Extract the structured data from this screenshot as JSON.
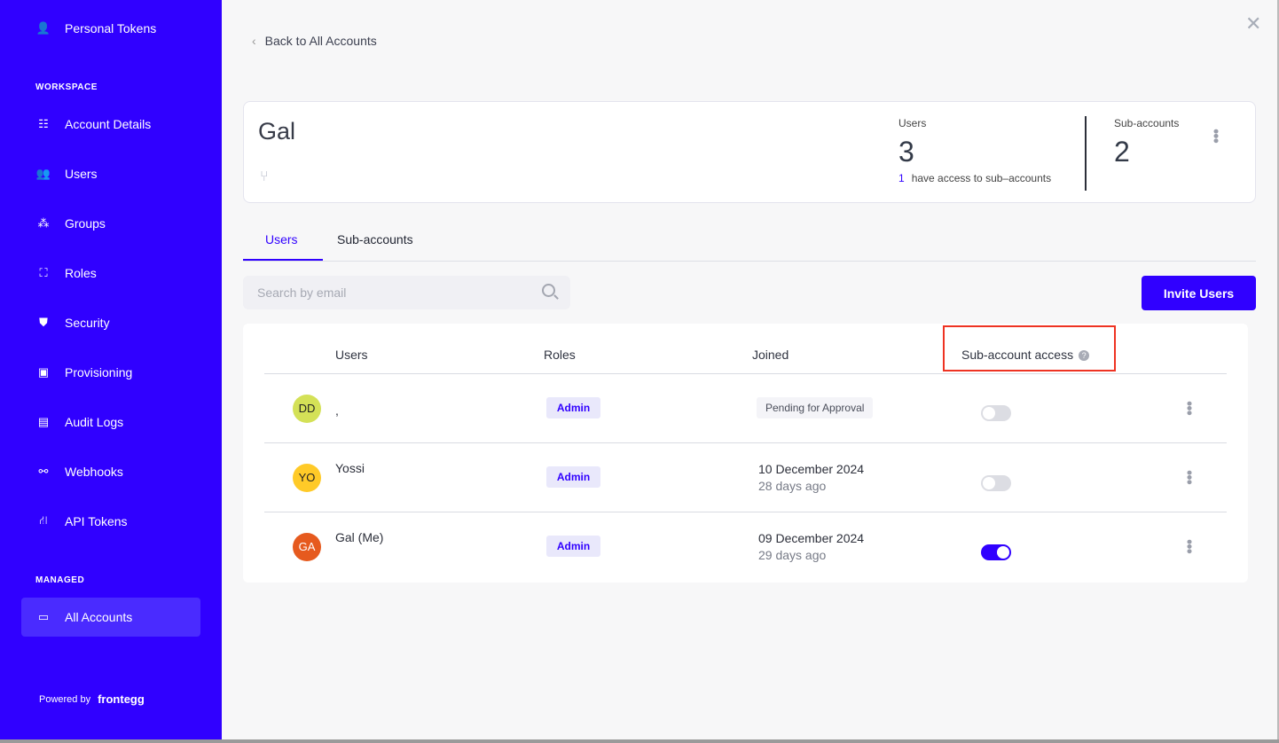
{
  "sidebar": {
    "personal_tokens": "Personal Tokens",
    "workspace_label": "WORKSPACE",
    "items": [
      {
        "label": "Account Details",
        "icon": "sliders-icon"
      },
      {
        "label": "Users",
        "icon": "users-icon"
      },
      {
        "label": "Groups",
        "icon": "groups-icon"
      },
      {
        "label": "Roles",
        "icon": "roles-icon"
      },
      {
        "label": "Security",
        "icon": "shield-icon"
      },
      {
        "label": "Provisioning",
        "icon": "provisioning-icon"
      },
      {
        "label": "Audit Logs",
        "icon": "document-icon"
      },
      {
        "label": "Webhooks",
        "icon": "webhook-icon"
      },
      {
        "label": "API Tokens",
        "icon": "api-icon"
      }
    ],
    "managed_label": "MANAGED",
    "all_accounts": "All Accounts",
    "powered_by": "Powered by",
    "brand": "frontegg"
  },
  "main": {
    "back": "Back to All Accounts",
    "account": {
      "name": "Gal",
      "users_label": "Users",
      "users_count": "3",
      "access_count": "1",
      "access_text": "have access to sub–accounts",
      "subaccounts_label": "Sub-accounts",
      "subaccounts_count": "2"
    },
    "tabs": [
      "Users",
      "Sub-accounts"
    ],
    "search_placeholder": "Search by email",
    "invite": "Invite Users",
    "columns": [
      "Users",
      "Roles",
      "Joined",
      "Sub-account access"
    ],
    "rows": [
      {
        "initials": "DD",
        "avatar_color": "#d4e157",
        "name": ",",
        "role": "Admin",
        "status": "Pending for Approval",
        "access": false
      },
      {
        "initials": "YO",
        "avatar_color": "#ffca28",
        "name": "Yossi",
        "role": "Admin",
        "date": "10 December 2024",
        "ago": "28 days ago",
        "access": false
      },
      {
        "initials": "GA",
        "avatar_color": "#e65a1e",
        "name": "Gal (Me)",
        "role": "Admin",
        "date": "09 December 2024",
        "ago": "29 days ago",
        "access": true
      }
    ]
  },
  "colors": {
    "brand": "#3000ff",
    "highlight": "#ee3322"
  }
}
